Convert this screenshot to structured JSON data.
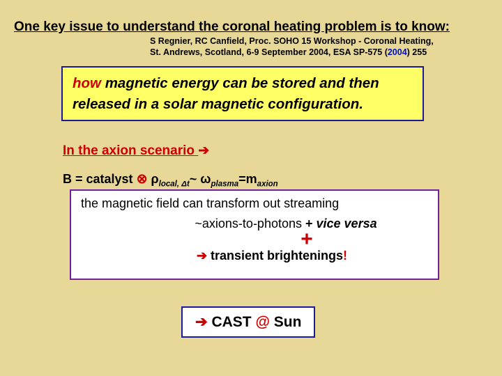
{
  "title": "One key issue to understand the coronal heating problem is to know:",
  "citation": {
    "line1": "S  Regnier, RC Canfield, Proc. SOHO 15 Workshop - Coronal Heating,",
    "line2_pre": "St. Andrews, Scotland, 6-9 September 2004, ESA SP-575 (",
    "year": "2004",
    "line2_post": ") 255"
  },
  "box1": {
    "how": "how",
    "rest": " magnetic energy can be stored and then released in a solar magnetic configuration."
  },
  "scenario": {
    "text": "In the axion scenario ",
    "arrow": "➔"
  },
  "formula": {
    "pre": "B = catalyst ",
    "otimes": "⊗",
    "rho": " ρ",
    "sub1": "local, Δt",
    "tilde": "~ ω",
    "sub2": "plasma",
    "eq": "=m",
    "sub3": "axion"
  },
  "box2": {
    "line1": "the magnetic field can transform out streaming",
    "line2_norm": "~axions-to-photons ",
    "line2_plus": "+ ",
    "line2_vv": "vice versa",
    "plus": "+",
    "line3_arrow": "➔",
    "line3_text": "  transient brightenings",
    "line3_excl": "!"
  },
  "box3": {
    "arrow": "➔",
    "text": " CAST ",
    "at": "@",
    "sun": " Sun"
  },
  "colors": {
    "bg": "#e8d898",
    "red": "#cc0000",
    "blue": "#1a1a99",
    "purple": "#7020a0",
    "yellow": "#ffff66",
    "white": "#ffffff",
    "link_blue": "#0010c8"
  }
}
